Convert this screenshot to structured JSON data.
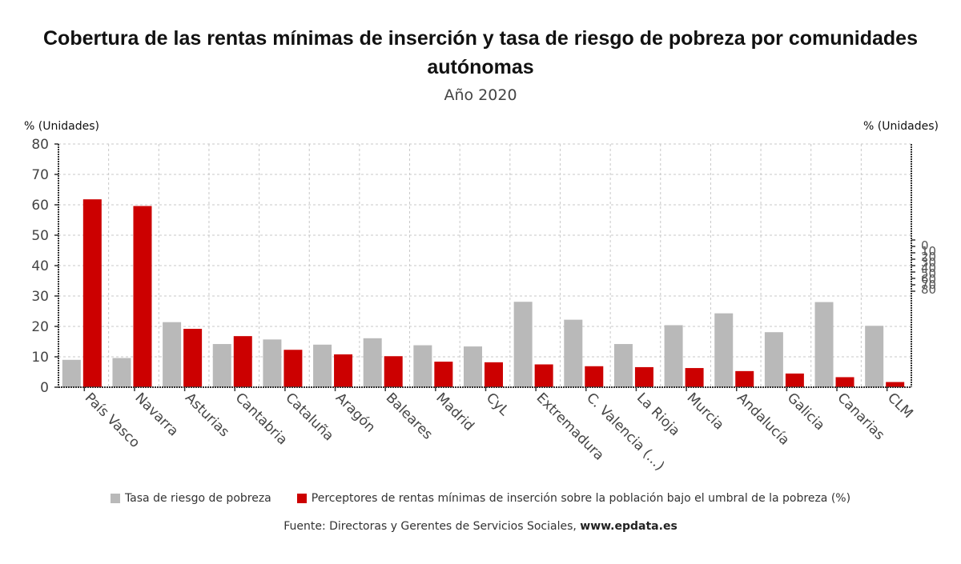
{
  "chart_data": {
    "type": "bar",
    "title": "Cobertura de las rentas mínimas de inserción y tasa de riesgo de pobreza por comunidades autónomas",
    "subtitle": "Año 2020",
    "ylabel_left": "% (Unidades)",
    "ylabel_right": "% (Unidades)",
    "xlabel": "",
    "ylim": [
      0,
      80
    ],
    "yticks": [
      "0",
      "10",
      "20",
      "30",
      "40",
      "50",
      "60",
      "70",
      "80"
    ],
    "grid": true,
    "legend_position": "bottom",
    "categories": [
      "País Vasco",
      "Navarra",
      "Asturias",
      "Cantabria",
      "Cataluña",
      "Aragón",
      "Baleares",
      "Madrid",
      "CyL",
      "Extremadura",
      "C. Valencia (...)",
      "La Rioja",
      "Murcia",
      "Andalucía",
      "Galicia",
      "Canarias",
      "CLM"
    ],
    "series": [
      {
        "name": "Tasa de riesgo de pobreza",
        "color": "#b9b9b9",
        "values": [
          9.0,
          9.6,
          21.4,
          14.2,
          15.7,
          14.0,
          16.1,
          13.8,
          13.4,
          28.1,
          22.2,
          14.2,
          20.4,
          24.3,
          18.1,
          28.0,
          20.2
        ]
      },
      {
        "name": "Perceptores de rentas mínimas de inserción sobre la población bajo el umbral de la pobreza (%)",
        "color": "#cc0000",
        "values": [
          61.8,
          59.6,
          19.2,
          16.8,
          12.3,
          10.8,
          10.2,
          8.4,
          8.2,
          7.5,
          6.9,
          6.6,
          6.3,
          5.3,
          4.5,
          3.3,
          1.7
        ]
      }
    ],
    "source_prefix": "Fuente: Directoras y Gerentes de Servicios Sociales, ",
    "source_link": "www.epdata.es"
  }
}
